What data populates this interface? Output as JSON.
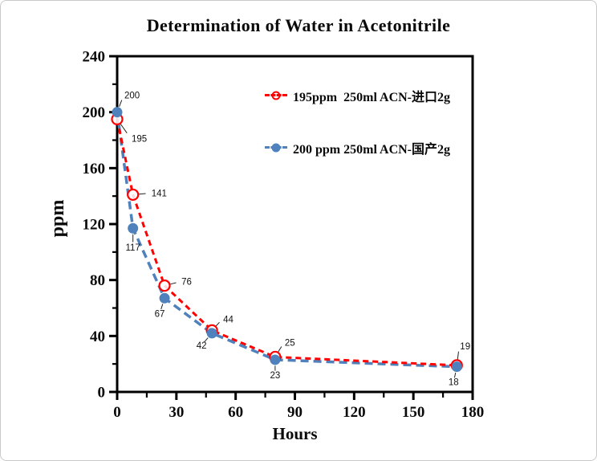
{
  "page": {
    "background": "#ffffff",
    "border_color": "#c9c9c9"
  },
  "chart_data": {
    "type": "line",
    "title": "Determination of Water in Acetonitrile",
    "xlabel": "Hours",
    "ylabel": "ppm",
    "xlim": [
      0,
      180
    ],
    "ylim": [
      0,
      240
    ],
    "x_major_ticks": [
      0,
      30,
      60,
      90,
      120,
      150,
      180
    ],
    "x_minor_step": 15,
    "y_major_ticks": [
      0,
      40,
      80,
      120,
      160,
      200,
      240
    ],
    "y_minor_step": 20,
    "grid": false,
    "legend_position": "inside-top-right",
    "axis_color": "#000000",
    "series": [
      {
        "name": "195ppm  250ml ACN-进口2g",
        "color": "#ff0000",
        "marker": "open-circle",
        "line_style": "dashed",
        "dash": "7 5",
        "line_width": 3,
        "x": [
          0,
          8,
          24,
          48,
          80,
          172
        ],
        "values": [
          195,
          141,
          76,
          44,
          25,
          19
        ],
        "data_labels": [
          "195",
          "141",
          "76",
          "44",
          "25",
          "19"
        ]
      },
      {
        "name": "200 ppm 250ml ACN-国产2g",
        "color": "#4f81bd",
        "marker": "filled-circle",
        "line_style": "dashed",
        "dash": "10 6",
        "line_width": 3.5,
        "x": [
          0,
          8,
          24,
          48,
          80,
          172
        ],
        "values": [
          200,
          117,
          67,
          42,
          23,
          18
        ],
        "data_labels": [
          "200",
          "117",
          "67",
          "42",
          "23",
          "18"
        ]
      }
    ]
  }
}
